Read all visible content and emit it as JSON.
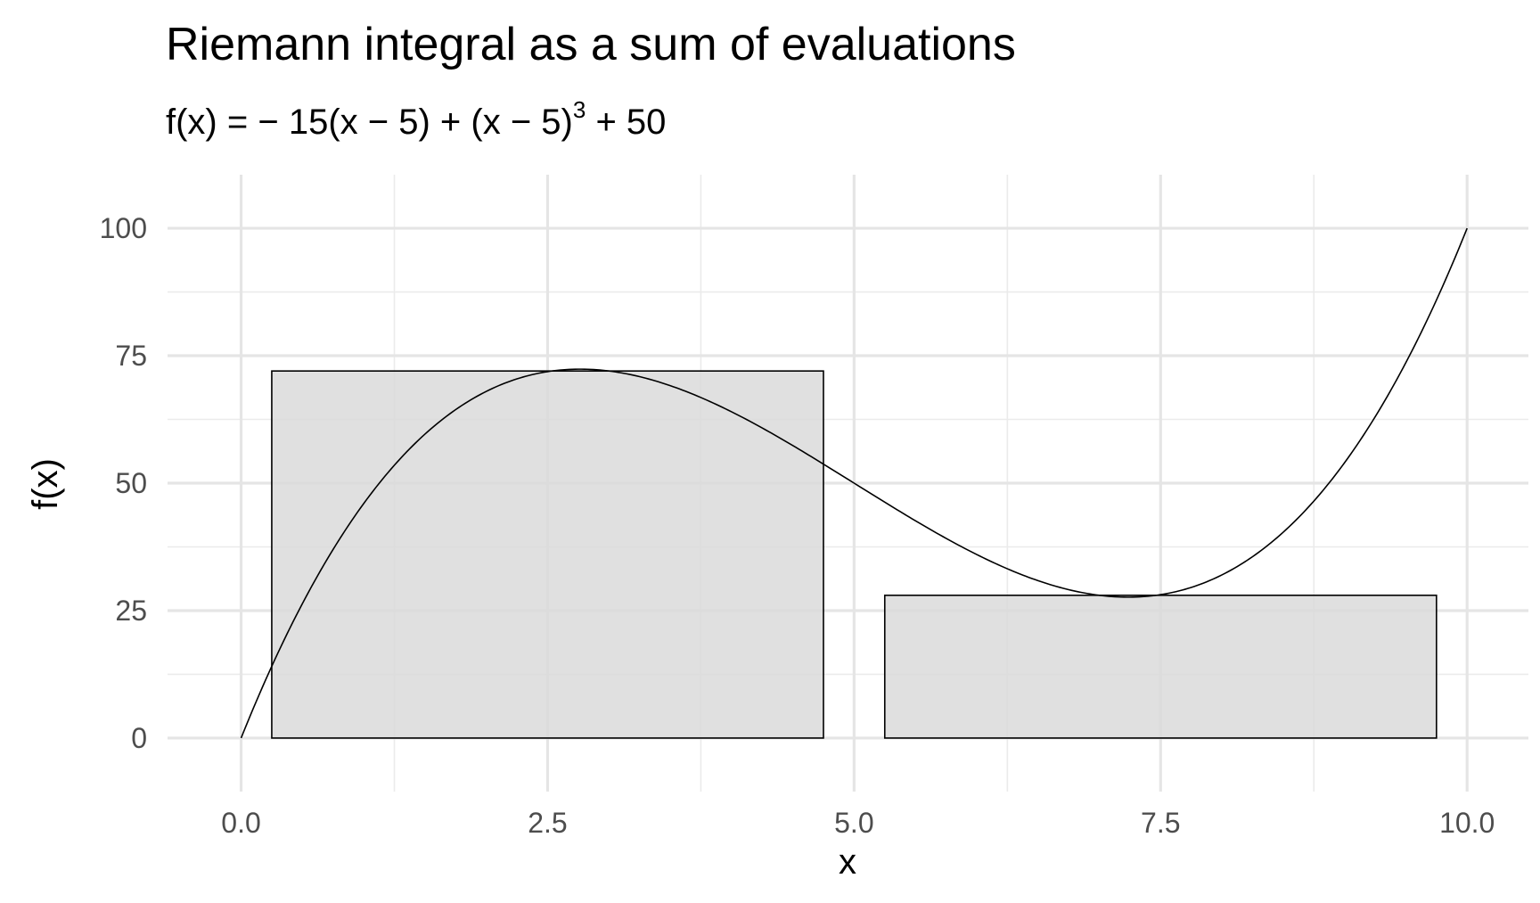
{
  "chart_data": {
    "type": "bar",
    "title": "Riemann integral as a sum of evaluations",
    "subtitle": {
      "lhs": "f(x)",
      "eq": " = ",
      "part1": "− 15(x − 5) + (x − 5)",
      "exponent": "3",
      "part2": " + 50"
    },
    "xlabel": "x",
    "ylabel": "f(x)",
    "xlim": [
      -0.6,
      10.5
    ],
    "ylim": [
      -10.5,
      110.5
    ],
    "x_ticks": [
      0.0,
      2.5,
      5.0,
      7.5,
      10.0
    ],
    "x_tick_labels": [
      "0.0",
      "2.5",
      "5.0",
      "7.5",
      "10.0"
    ],
    "x_minor_ticks": [
      1.25,
      3.75,
      6.25,
      8.75
    ],
    "y_ticks": [
      0,
      25,
      50,
      75,
      100
    ],
    "y_tick_labels": [
      "0",
      "25",
      "50",
      "75",
      "100"
    ],
    "y_minor_ticks": [
      12.5,
      37.5,
      62.5,
      87.5
    ],
    "grid": true,
    "rectangles": [
      {
        "x_start": 0.25,
        "x_end": 4.75,
        "height": 72.0
      },
      {
        "x_start": 5.25,
        "x_end": 9.75,
        "height": 28.0
      }
    ],
    "rect_fill": "#d9d9d9",
    "rect_stroke": "#000000",
    "curve": {
      "formula": "-15*(x-5) + (x-5)^3 + 50",
      "x_range": [
        0,
        10
      ],
      "color": "#000000"
    }
  }
}
